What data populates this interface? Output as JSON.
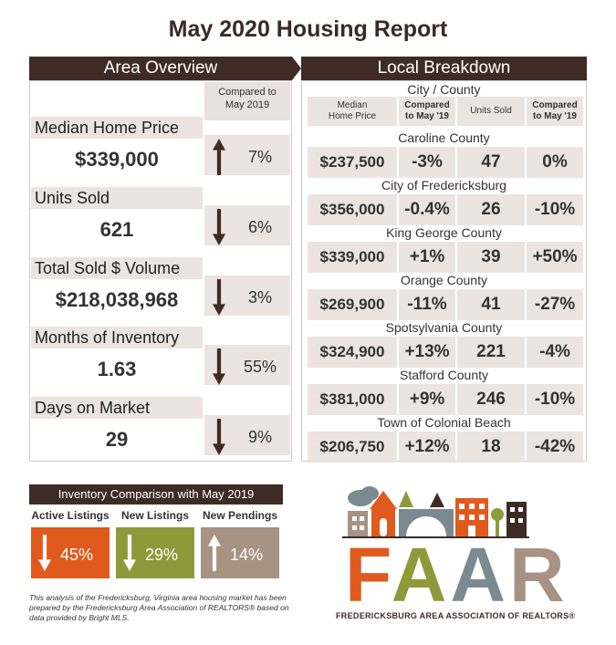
{
  "title": "May 2020 Housing Report",
  "area_overview": {
    "heading": "Area Overview",
    "compared_header": [
      "Compared to",
      "May 2019"
    ],
    "metrics": [
      {
        "label": "Median Home Price",
        "value": "$339,000",
        "direction": "up",
        "change": "7%"
      },
      {
        "label": "Units Sold",
        "value": "621",
        "direction": "down",
        "change": "6%"
      },
      {
        "label": "Total Sold $ Volume",
        "value": "$218,038,968",
        "direction": "down",
        "change": "3%"
      },
      {
        "label": "Months of Inventory",
        "value": "1.63",
        "direction": "down",
        "change": "55%"
      },
      {
        "label": "Days on Market",
        "value": "29",
        "direction": "down",
        "change": "9%"
      }
    ]
  },
  "local_breakdown": {
    "heading": "Local Breakdown",
    "city_county_label": "City / County",
    "columns": [
      "Median Home Price",
      "Compared to May '19",
      "Units Sold",
      "Compared to May '19"
    ],
    "column_lines": [
      [
        "Median",
        "Home Price"
      ],
      [
        "Compared",
        "to May '19"
      ],
      [
        "Units Sold"
      ],
      [
        "Compared",
        "to May '19"
      ]
    ],
    "rows": [
      {
        "name": "Caroline County",
        "price": "$237,500",
        "price_change": "-3%",
        "units": "47",
        "units_change": "0%"
      },
      {
        "name": "City of Fredericksburg",
        "price": "$356,000",
        "price_change": "-0.4%",
        "units": "26",
        "units_change": "-10%"
      },
      {
        "name": "King George County",
        "price": "$339,000",
        "price_change": "+1%",
        "units": "39",
        "units_change": "+50%"
      },
      {
        "name": "Orange County",
        "price": "$269,900",
        "price_change": "-11%",
        "units": "41",
        "units_change": "-27%"
      },
      {
        "name": "Spotsylvania County",
        "price": "$324,900",
        "price_change": "+13%",
        "units": "221",
        "units_change": "-4%"
      },
      {
        "name": "Stafford County",
        "price": "$381,000",
        "price_change": "+9%",
        "units": "246",
        "units_change": "-10%"
      },
      {
        "name": "Town of Colonial Beach",
        "price": "$206,750",
        "price_change": "+12%",
        "units": "18",
        "units_change": "-42%"
      }
    ]
  },
  "inventory": {
    "heading": "Inventory Comparison with May 2019",
    "items": [
      {
        "label": "Active Listings",
        "direction": "down",
        "value": "45%",
        "color": "#e05a1e"
      },
      {
        "label": "New Listings",
        "direction": "down",
        "value": "29%",
        "color": "#8e9a3a"
      },
      {
        "label": "New Pendings",
        "direction": "up",
        "value": "14%",
        "color": "#a89283"
      }
    ]
  },
  "footnote": "This analysis of the Fredericksburg, Virginia area housing market has been prepared by the Fredericksburg Area Association of REALTORS® based on data provided by Bright MLS.",
  "logo": {
    "word": "FAAR",
    "tagline": "FREDERICKSBURG AREA ASSOCIATION OF REALTORS®",
    "colors": {
      "f": "#e05a1e",
      "a1": "#8e9a3a",
      "a2": "#7b8a91",
      "r": "#a89283"
    }
  },
  "colors": {
    "dark_brown": "#3f2b26",
    "tan": "#ebe4e1"
  }
}
